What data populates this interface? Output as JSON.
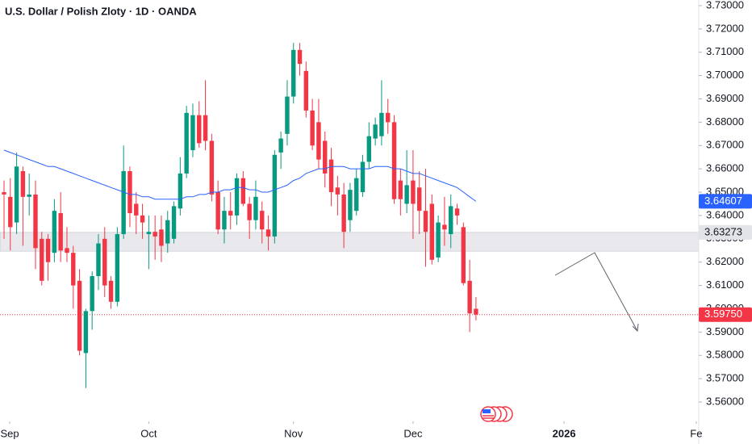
{
  "chart_data": {
    "type": "candlestick",
    "title": "U.S. Dollar / Polish Zloty · 1D · OANDA",
    "candles": {
      "up_color": "#089981",
      "down_color": "#f23645",
      "open": [
        3.65,
        3.648,
        3.637,
        3.659,
        3.648,
        3.649,
        3.63,
        3.63,
        3.624,
        3.641,
        3.626,
        3.624,
        3.612,
        3.581,
        3.599,
        3.614,
        3.63,
        3.612,
        3.603,
        3.632,
        3.659,
        3.645,
        3.64,
        3.632,
        3.633,
        3.634,
        3.628,
        3.63,
        3.643,
        3.658,
        3.668,
        3.683,
        3.683,
        3.672,
        3.65,
        3.634,
        3.642,
        3.64,
        3.656,
        3.645,
        3.638,
        3.642,
        3.634,
        3.631,
        3.667,
        3.675,
        3.691,
        3.711,
        3.702,
        3.685,
        3.68,
        3.672,
        3.664,
        3.652,
        3.649,
        3.638,
        3.642,
        3.65,
        3.663,
        3.673,
        3.674,
        3.684,
        3.68,
        3.655,
        3.645,
        3.655,
        3.652,
        3.642,
        3.645,
        3.622,
        3.636,
        3.632,
        3.643,
        3.635,
        3.612,
        3.6
      ],
      "high": [
        3.655,
        3.656,
        3.667,
        3.661,
        3.658,
        3.655,
        3.633,
        3.632,
        3.647,
        3.65,
        3.635,
        3.627,
        3.617,
        3.6,
        3.616,
        3.632,
        3.635,
        3.614,
        3.635,
        3.67,
        3.661,
        3.65,
        3.645,
        3.64,
        3.64,
        3.64,
        3.642,
        3.646,
        3.665,
        3.687,
        3.688,
        3.689,
        3.698,
        3.675,
        3.655,
        3.648,
        3.65,
        3.658,
        3.659,
        3.648,
        3.655,
        3.646,
        3.64,
        3.668,
        3.676,
        3.698,
        3.714,
        3.714,
        3.706,
        3.69,
        3.69,
        3.676,
        3.669,
        3.657,
        3.654,
        3.654,
        3.66,
        3.666,
        3.68,
        3.682,
        3.698,
        3.69,
        3.683,
        3.66,
        3.668,
        3.668,
        3.659,
        3.66,
        3.649,
        3.64,
        3.648,
        3.649,
        3.645,
        3.637,
        3.621,
        3.605
      ],
      "low": [
        3.63,
        3.625,
        3.632,
        3.627,
        3.64,
        3.617,
        3.61,
        3.612,
        3.62,
        3.62,
        3.62,
        3.6,
        3.58,
        3.566,
        3.591,
        3.608,
        3.605,
        3.6,
        3.601,
        3.63,
        3.635,
        3.632,
        3.63,
        3.617,
        3.621,
        3.62,
        3.624,
        3.628,
        3.64,
        3.656,
        3.665,
        3.669,
        3.668,
        3.646,
        3.632,
        3.628,
        3.634,
        3.636,
        3.644,
        3.63,
        3.634,
        3.628,
        3.625,
        3.628,
        3.66,
        3.67,
        3.688,
        3.7,
        3.682,
        3.668,
        3.66,
        3.652,
        3.644,
        3.64,
        3.626,
        3.633,
        3.64,
        3.648,
        3.66,
        3.67,
        3.67,
        3.675,
        3.645,
        3.64,
        3.641,
        3.63,
        3.632,
        3.618,
        3.619,
        3.62,
        3.627,
        3.626,
        3.636,
        3.61,
        3.59,
        3.595
      ],
      "close": [
        3.649,
        3.635,
        3.661,
        3.648,
        3.649,
        3.626,
        3.612,
        3.62,
        3.642,
        3.625,
        3.624,
        3.61,
        3.582,
        3.599,
        3.614,
        3.628,
        3.61,
        3.603,
        3.632,
        3.659,
        3.641,
        3.64,
        3.637,
        3.633,
        3.631,
        3.627,
        3.638,
        3.644,
        3.658,
        3.684,
        3.683,
        3.671,
        3.672,
        3.649,
        3.634,
        3.642,
        3.64,
        3.656,
        3.645,
        3.638,
        3.648,
        3.634,
        3.631,
        3.666,
        3.673,
        3.691,
        3.711,
        3.705,
        3.685,
        3.67,
        3.664,
        3.658,
        3.65,
        3.649,
        3.633,
        3.651,
        3.656,
        3.663,
        3.674,
        3.679,
        3.684,
        3.68,
        3.647,
        3.647,
        3.653,
        3.645,
        3.642,
        3.633,
        3.621,
        3.637,
        3.634,
        3.644,
        3.64,
        3.611,
        3.598,
        3.5975
      ]
    },
    "ma": {
      "color": "#2962ff",
      "values": [
        3.668,
        3.667,
        3.666,
        3.665,
        3.664,
        3.663,
        3.662,
        3.661,
        3.661,
        3.66,
        3.659,
        3.658,
        3.657,
        3.656,
        3.655,
        3.654,
        3.653,
        3.652,
        3.651,
        3.65,
        3.649,
        3.649,
        3.648,
        3.648,
        3.647,
        3.647,
        3.647,
        3.647,
        3.647,
        3.648,
        3.648,
        3.649,
        3.649,
        3.65,
        3.65,
        3.651,
        3.651,
        3.652,
        3.652,
        3.651,
        3.651,
        3.65,
        3.65,
        3.651,
        3.652,
        3.653,
        3.655,
        3.656,
        3.658,
        3.659,
        3.66,
        3.66,
        3.661,
        3.661,
        3.661,
        3.66,
        3.66,
        3.66,
        3.66,
        3.661,
        3.661,
        3.661,
        3.66,
        3.66,
        3.659,
        3.658,
        3.658,
        3.657,
        3.656,
        3.655,
        3.654,
        3.653,
        3.652,
        3.65,
        3.648,
        3.64607
      ]
    },
    "zone": {
      "top": 3.63273,
      "bottom": 3.6247,
      "color": "#e3e4e8"
    },
    "last_price": {
      "value": 3.5975,
      "label": "3.59750"
    },
    "xlim": [
      -0.64,
      110.4
    ],
    "ylim": [
      3.5517,
      3.7324
    ],
    "xticks": [
      {
        "value": 0.9,
        "label": "Sep"
      },
      {
        "value": 23,
        "label": "Oct"
      },
      {
        "value": 46,
        "label": "Nov"
      },
      {
        "value": 65,
        "label": "Dec"
      },
      {
        "value": 89,
        "label": "2026"
      },
      {
        "value": 110,
        "label": "Fe"
      }
    ],
    "yticks": [
      {
        "value": 3.56,
        "label": "3.56000"
      },
      {
        "value": 3.57,
        "label": "3.57000"
      },
      {
        "value": 3.58,
        "label": "3.58000"
      },
      {
        "value": 3.59,
        "label": "3.59000"
      },
      {
        "value": 3.6,
        "label": "3.60000"
      },
      {
        "value": 3.61,
        "label": "3.61000"
      },
      {
        "value": 3.62,
        "label": "3.62000"
      },
      {
        "value": 3.63,
        "label": "3.63000"
      },
      {
        "value": 3.64,
        "label": "3.64000"
      },
      {
        "value": 3.65,
        "label": "3.65000"
      },
      {
        "value": 3.66,
        "label": "3.66000"
      },
      {
        "value": 3.67,
        "label": "3.67000"
      },
      {
        "value": 3.68,
        "label": "3.68000"
      },
      {
        "value": 3.69,
        "label": "3.69000"
      },
      {
        "value": 3.7,
        "label": "3.70000"
      },
      {
        "value": 3.71,
        "label": "3.71000"
      },
      {
        "value": 3.72,
        "label": "3.72000"
      },
      {
        "value": 3.73,
        "label": "3.73000"
      }
    ]
  }
}
